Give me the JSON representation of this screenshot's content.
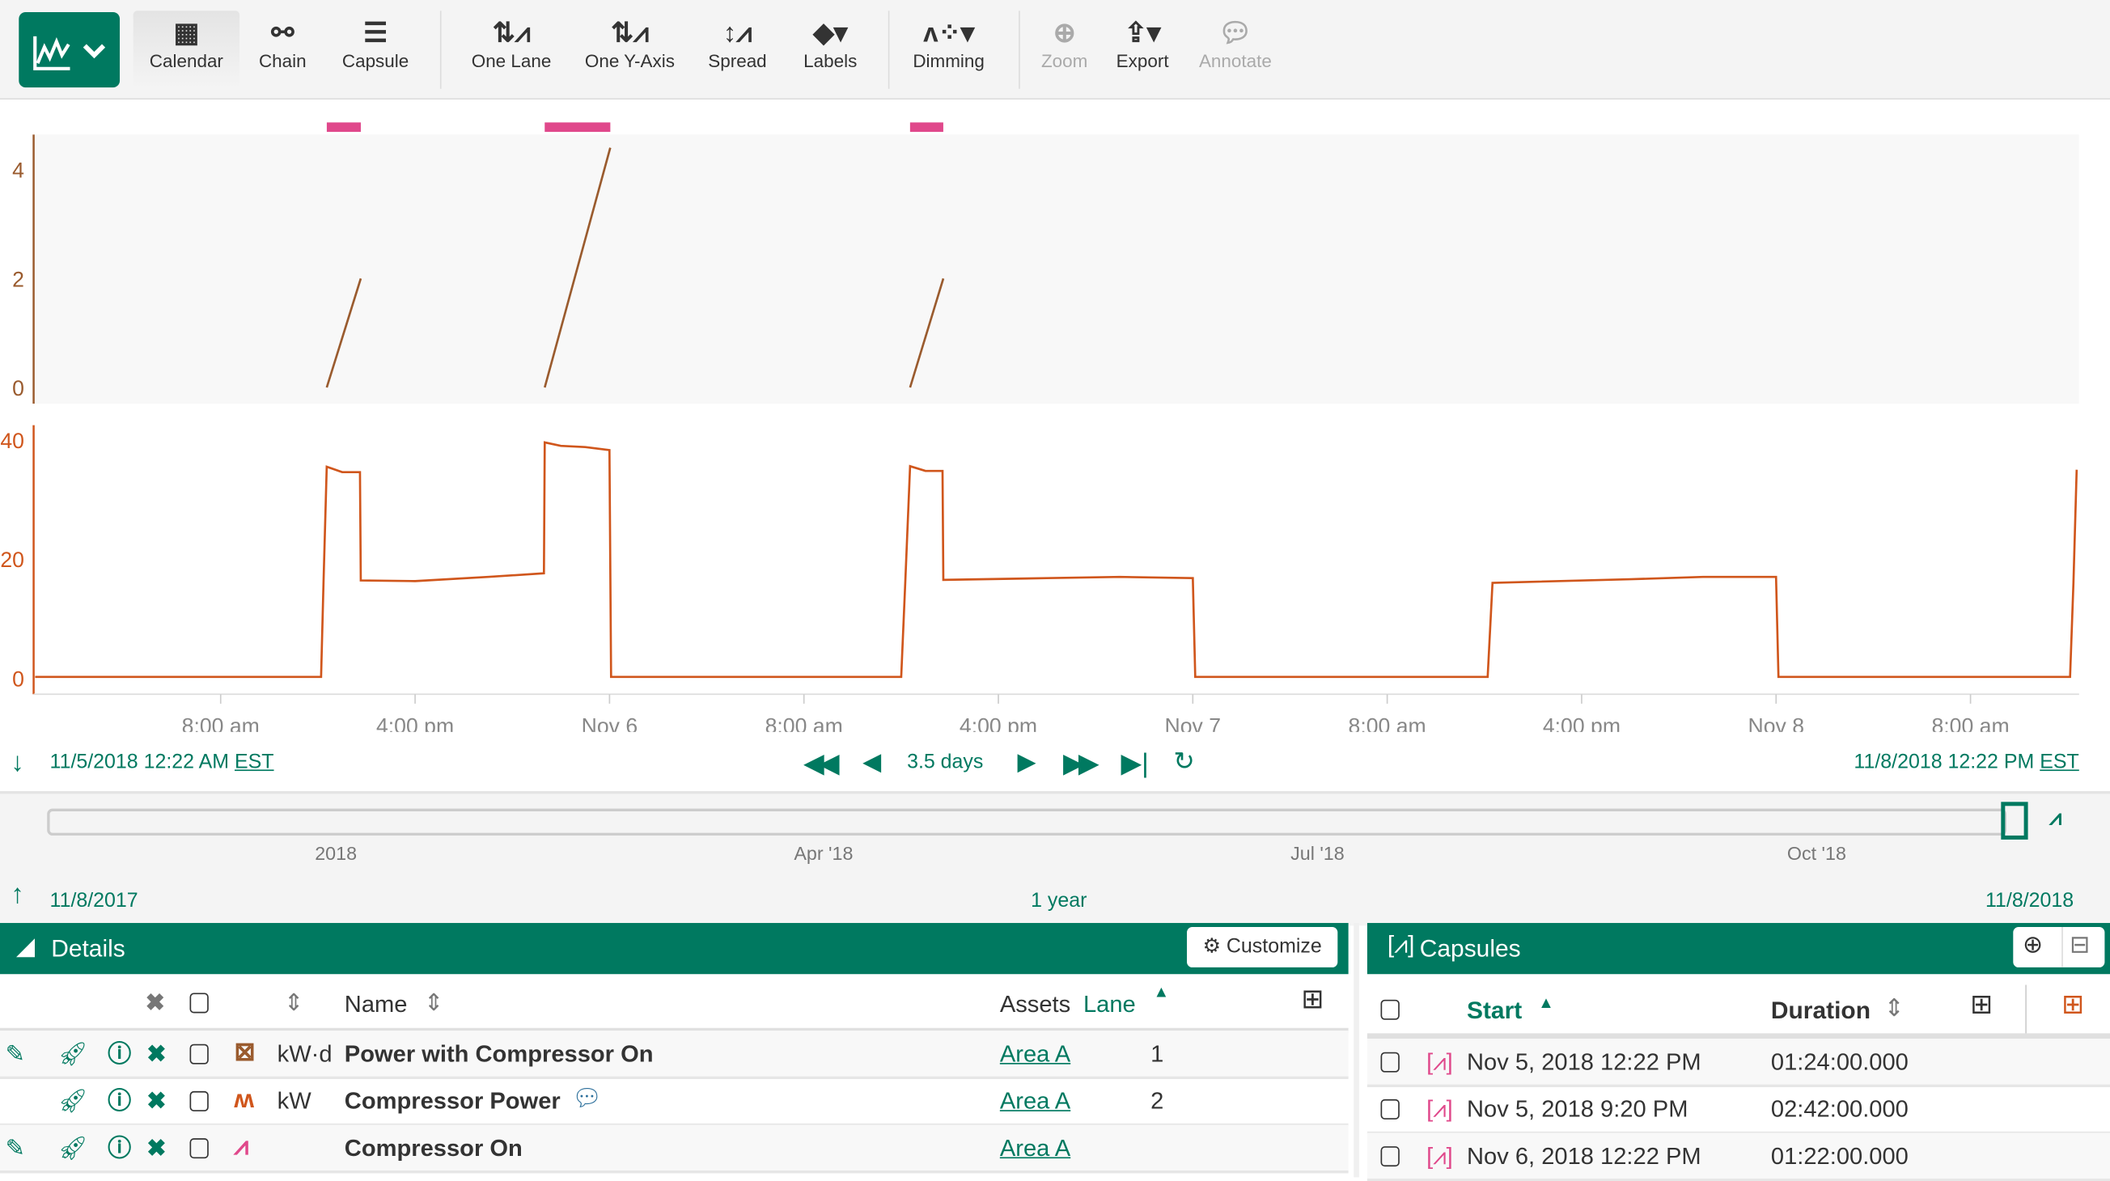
{
  "toolbar": {
    "brand_icon": "line-chart-icon",
    "buttons": [
      {
        "label": "Calendar",
        "icon": "calendar-icon",
        "active": true
      },
      {
        "label": "Chain",
        "icon": "chain-icon"
      },
      {
        "label": "Capsule",
        "icon": "capsule-icon"
      },
      {
        "label": "One Lane",
        "icon": "one-lane-icon"
      },
      {
        "label": "One Y-Axis",
        "icon": "one-y-axis-icon"
      },
      {
        "label": "Spread",
        "icon": "spread-icon"
      },
      {
        "label": "Labels",
        "icon": "tag-icon"
      },
      {
        "label": "Dimming",
        "icon": "dimming-icon"
      },
      {
        "label": "Zoom",
        "icon": "zoom-icon",
        "disabled": true
      },
      {
        "label": "Export",
        "icon": "export-icon"
      },
      {
        "label": "Annotate",
        "icon": "comment-icon",
        "disabled": true
      }
    ]
  },
  "chart_data": {
    "type": "line",
    "x_ticks": [
      "8:00 am",
      "4:00 pm",
      "Nov 6",
      "8:00 am",
      "4:00 pm",
      "Nov 7",
      "8:00 am",
      "4:00 pm",
      "Nov 8",
      "8:00 am"
    ],
    "x_tick_times": [
      "2018-11-05 08:00",
      "2018-11-05 16:00",
      "2018-11-06 00:00",
      "2018-11-06 08:00",
      "2018-11-06 16:00",
      "2018-11-07 00:00",
      "2018-11-07 08:00",
      "2018-11-07 16:00",
      "2018-11-08 00:00",
      "2018-11-08 08:00"
    ],
    "xlim": [
      "2018-11-05 00:22",
      "2018-11-08 12:22"
    ],
    "capsules": [
      {
        "start": "2018-11-05 12:22",
        "end": "2018-11-05 13:46"
      },
      {
        "start": "2018-11-05 21:20",
        "end": "2018-11-06 00:02"
      },
      {
        "start": "2018-11-06 12:22",
        "end": "2018-11-06 13:44"
      }
    ],
    "capsule_color": "#e0488b",
    "lanes": [
      {
        "y_ticks": [
          "0",
          "2",
          "4"
        ],
        "ylim": [
          0,
          4.5
        ],
        "color": "#9a5b2e",
        "segments": [
          [
            [
              "2018-11-05 12:22",
              0
            ],
            [
              "2018-11-05 13:46",
              2.0
            ]
          ],
          [
            [
              "2018-11-05 21:20",
              0
            ],
            [
              "2018-11-06 00:02",
              4.4
            ]
          ],
          [
            [
              "2018-11-06 12:22",
              0
            ],
            [
              "2018-11-06 13:44",
              2.0
            ]
          ]
        ]
      },
      {
        "y_ticks": [
          "0",
          "20",
          "40"
        ],
        "ylim": [
          0,
          40
        ],
        "color": "#d0561c",
        "segments": [
          [
            [
              "2018-11-05 00:22",
              0.2
            ],
            [
              "2018-11-05 12:08",
              0.2
            ],
            [
              "2018-11-05 12:14",
              16
            ],
            [
              "2018-11-05 12:22",
              35.5
            ],
            [
              "2018-11-05 13:00",
              34.6
            ],
            [
              "2018-11-05 13:44",
              34.6
            ],
            [
              "2018-11-05 13:46",
              16.4
            ],
            [
              "2018-11-05 16:00",
              16.3
            ],
            [
              "2018-11-05 19:00",
              17
            ],
            [
              "2018-11-05 21:18",
              17.6
            ],
            [
              "2018-11-05 21:20",
              39.6
            ],
            [
              "2018-11-05 22:00",
              39
            ],
            [
              "2018-11-05 23:00",
              38.8
            ],
            [
              "2018-11-06 00:00",
              38.3
            ],
            [
              "2018-11-06 00:04",
              0.2
            ],
            [
              "2018-11-06 12:00",
              0.2
            ],
            [
              "2018-11-06 12:10",
              16
            ],
            [
              "2018-11-06 12:22",
              35.6
            ],
            [
              "2018-11-06 13:00",
              34.8
            ],
            [
              "2018-11-06 13:42",
              34.8
            ],
            [
              "2018-11-06 13:44",
              16.5
            ],
            [
              "2018-11-06 18:00",
              16.8
            ],
            [
              "2018-11-06 21:00",
              17
            ],
            [
              "2018-11-07 00:00",
              16.8
            ],
            [
              "2018-11-07 00:06",
              0.2
            ],
            [
              "2018-11-07 12:08",
              0.2
            ],
            [
              "2018-11-07 12:20",
              16
            ],
            [
              "2018-11-07 18:00",
              16.6
            ],
            [
              "2018-11-07 21:00",
              17
            ],
            [
              "2018-11-08 00:00",
              17
            ],
            [
              "2018-11-08 00:06",
              0.2
            ],
            [
              "2018-11-08 12:06",
              0.2
            ],
            [
              "2018-11-08 12:14",
              16
            ],
            [
              "2018-11-08 12:22",
              35
            ]
          ]
        ]
      }
    ]
  },
  "range": {
    "start": "11/5/2018 12:22 AM",
    "end": "11/8/2018 12:22 PM",
    "tz": "EST",
    "duration": "3.5 days"
  },
  "timeline": {
    "ticks": [
      "2018",
      "Apr '18",
      "Jul '18",
      "Oct '18"
    ],
    "start": "11/8/2017",
    "end": "11/8/2018",
    "duration": "1 year"
  },
  "details": {
    "title": "Details",
    "customize_label": "Customize",
    "columns": {
      "name": "Name",
      "assets": "Assets",
      "lane": "Lane"
    },
    "rows": [
      {
        "unit": "kW·d",
        "name": "Power with Compressor On",
        "asset": "Area A",
        "lane": "1",
        "icon": "formula-icon",
        "color": "#9a5b2e"
      },
      {
        "unit": "kW",
        "name": "Compressor Power",
        "asset": "Area A",
        "lane": "2",
        "icon": "signal-icon",
        "color": "#d0561c"
      },
      {
        "unit": "",
        "name": "Compressor On",
        "asset": "Area A",
        "lane": "",
        "icon": "capsule-icon",
        "color": "#e0488b"
      }
    ]
  },
  "capsules": {
    "title": "Capsules",
    "columns": {
      "start": "Start",
      "duration": "Duration"
    },
    "rows": [
      {
        "start": "Nov 5, 2018 12:22 PM",
        "duration": "01:24:00.000"
      },
      {
        "start": "Nov 5, 2018 9:20 PM",
        "duration": "02:42:00.000"
      },
      {
        "start": "Nov 6, 2018 12:22 PM",
        "duration": "01:22:00.000"
      }
    ]
  },
  "colors": {
    "accent": "#007960",
    "capsule": "#e0488b"
  }
}
